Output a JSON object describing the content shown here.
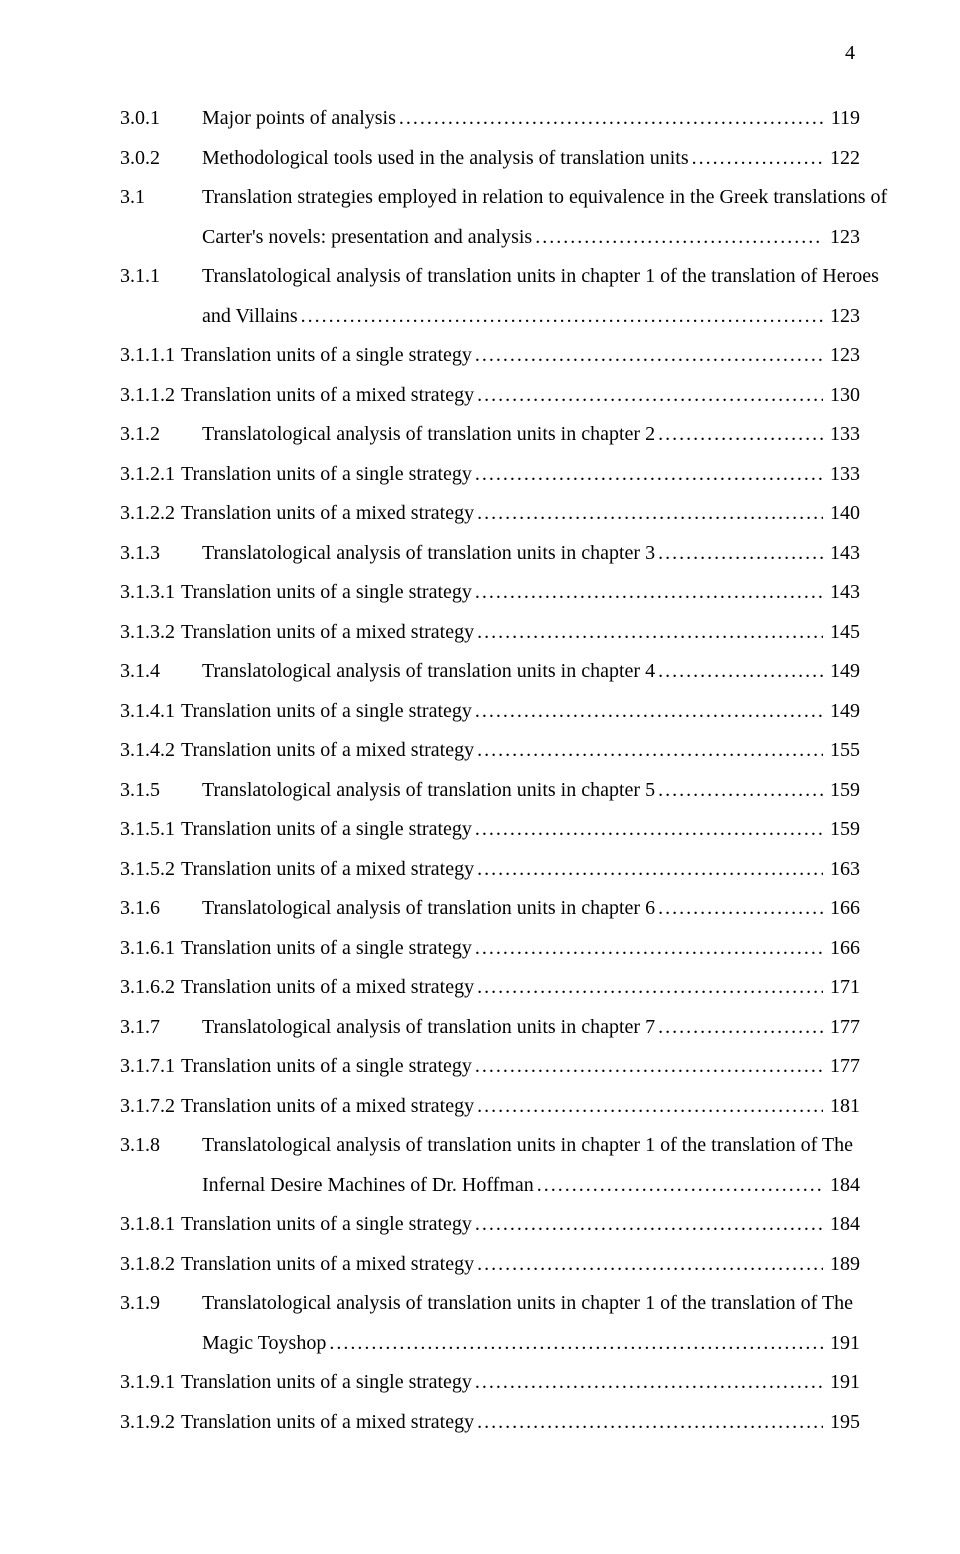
{
  "pageNumber": "4",
  "entries": [
    {
      "num": "3.0.1",
      "numWide": true,
      "title": "Major points of analysis",
      "page": "119"
    },
    {
      "num": "3.0.2",
      "numWide": true,
      "title": "Methodological tools used in the analysis of translation units",
      "page": "122"
    },
    {
      "num": "3.1",
      "numWide": true,
      "title": "Translation strategies employed in relation to equivalence in the Greek translations of",
      "cont": "Carter's novels: presentation and analysis",
      "page": "123"
    },
    {
      "num": "3.1.1",
      "numWide": true,
      "title": "Translatological analysis of translation units in chapter 1 of the translation of Heroes",
      "cont": "and Villains",
      "page": "123"
    },
    {
      "num": "3.1.1.1",
      "title": "Translation units of a single strategy",
      "page": "123"
    },
    {
      "num": "3.1.1.2",
      "title": "Translation units of a mixed strategy",
      "page": "130"
    },
    {
      "num": "3.1.2",
      "numWide": true,
      "title": "Translatological analysis of translation units in chapter 2",
      "page": "133"
    },
    {
      "num": "3.1.2.1",
      "title": "Translation units of a single strategy",
      "page": "133"
    },
    {
      "num": "3.1.2.2",
      "title": "Translation units of a mixed strategy",
      "page": "140"
    },
    {
      "num": "3.1.3",
      "numWide": true,
      "title": "Translatological analysis of translation units in chapter 3",
      "page": "143"
    },
    {
      "num": "3.1.3.1",
      "title": "Translation units of a single strategy",
      "page": "143"
    },
    {
      "num": "3.1.3.2",
      "title": "Translation units of a mixed strategy",
      "page": "145"
    },
    {
      "num": "3.1.4",
      "numWide": true,
      "title": "Translatological analysis of translation units in chapter 4",
      "page": "149"
    },
    {
      "num": "3.1.4.1",
      "title": "Translation units of a single strategy",
      "page": "149"
    },
    {
      "num": "3.1.4.2",
      "title": "Translation units of a mixed strategy",
      "page": "155"
    },
    {
      "num": "3.1.5",
      "numWide": true,
      "title": "Translatological analysis of translation units in chapter 5",
      "page": "159"
    },
    {
      "num": "3.1.5.1",
      "title": "Translation units of a single strategy",
      "page": "159"
    },
    {
      "num": "3.1.5.2",
      "title": "Translation units of a mixed strategy",
      "page": "163"
    },
    {
      "num": "3.1.6",
      "numWide": true,
      "title": "Translatological analysis of translation units in chapter 6",
      "page": "166"
    },
    {
      "num": "3.1.6.1",
      "title": "Translation units of a single strategy",
      "page": "166"
    },
    {
      "num": "3.1.6.2",
      "title": "Translation units of a mixed strategy",
      "page": "171"
    },
    {
      "num": "3.1.7",
      "numWide": true,
      "title": "Translatological analysis of translation units in chapter 7",
      "page": "177"
    },
    {
      "num": "3.1.7.1",
      "title": "Translation units of a single strategy",
      "page": "177"
    },
    {
      "num": "3.1.7.2",
      "title": "Translation units of a mixed strategy",
      "page": "181"
    },
    {
      "num": "3.1.8",
      "numWide": true,
      "title": "Translatological analysis of translation units in chapter 1 of the translation of The",
      "cont": "Infernal Desire Machines of Dr. Hoffman",
      "page": "184"
    },
    {
      "num": "3.1.8.1",
      "title": "Translation units of a single strategy",
      "page": "184"
    },
    {
      "num": "3.1.8.2",
      "title": "Translation units of a mixed strategy",
      "page": "189"
    },
    {
      "num": "3.1.9",
      "numWide": true,
      "title": "Translatological analysis of translation units in chapter 1 of the translation of The",
      "cont": "Magic Toyshop",
      "page": "191"
    },
    {
      "num": "3.1.9.1",
      "title": "Translation units of a single strategy",
      "page": "191"
    },
    {
      "num": "3.1.9.2",
      "title": "Translation units of a mixed strategy",
      "page": "195"
    }
  ]
}
